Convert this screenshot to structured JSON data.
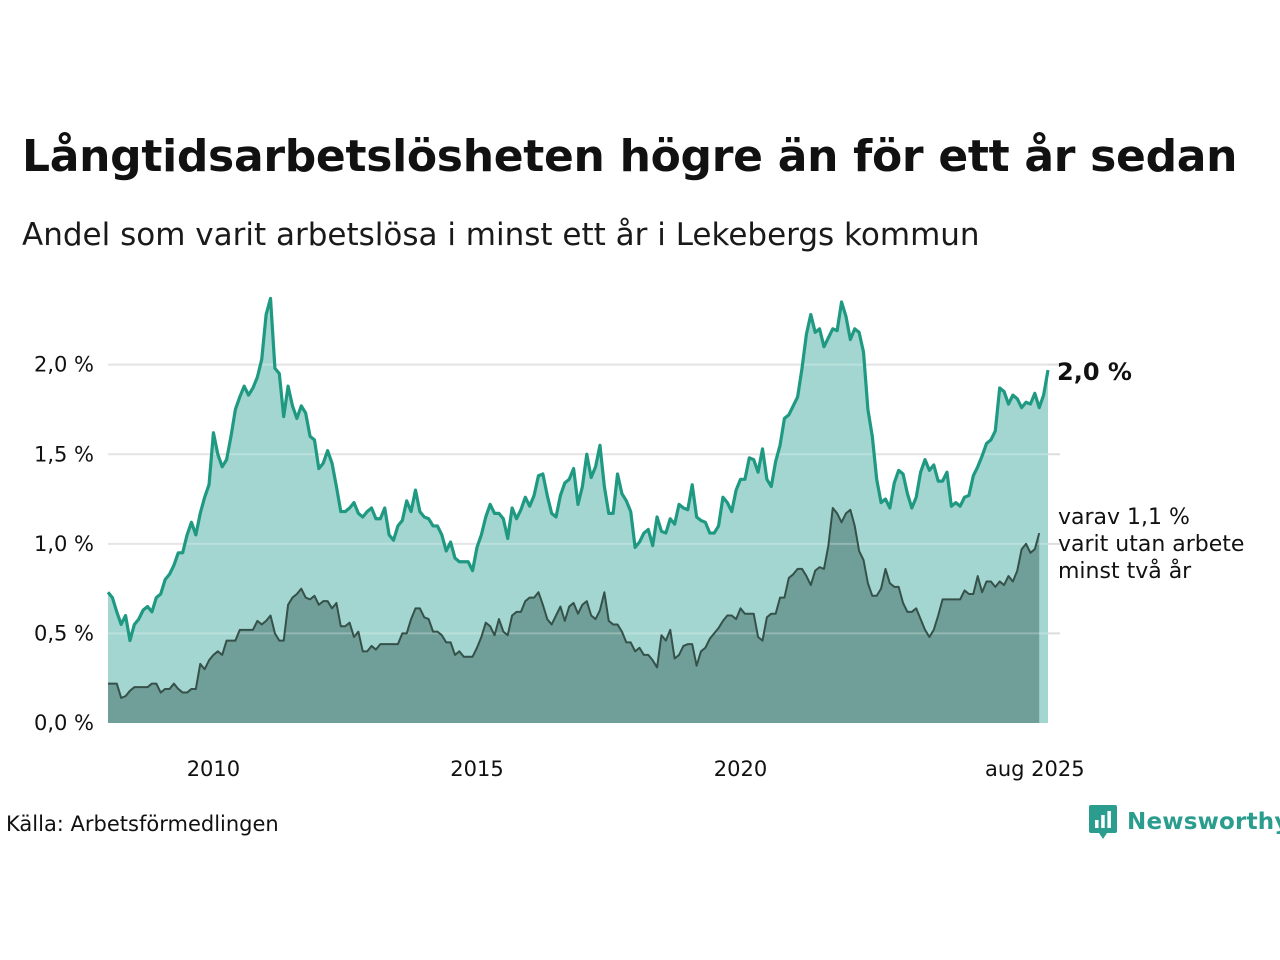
{
  "title": "Långtidsarbetslösheten högre än för ett år sedan",
  "subtitle": "Andel som varit arbetslösa i minst ett år i Lekebergs kommun",
  "source": "Källa: Arbetsförmedlingen",
  "brand": "Newsworthy",
  "colors": {
    "main_line": "#1f9982",
    "main_fill": "#a3d6d0",
    "sub_line": "#35514a",
    "sub_fill": "#6f9f98",
    "grid": "#dddddd",
    "brand": "#2a9d8f"
  },
  "chart_data": {
    "type": "area",
    "x_start": "2008-01",
    "x_end": "2025-08",
    "frequency": "monthly",
    "ylim": [
      0,
      2.4
    ],
    "y_ticks": [
      0,
      0.5,
      1.0,
      1.5,
      2.0
    ],
    "y_tick_labels": [
      "0,0 %",
      "0,5 %",
      "1,0 %",
      "1,5 %",
      "2,0 %"
    ],
    "x_tick_labels": [
      {
        "date": "2010-01",
        "label": "2010"
      },
      {
        "date": "2015-01",
        "label": "2015"
      },
      {
        "date": "2020-01",
        "label": "2020"
      },
      {
        "date": "2025-08",
        "label": "aug 2025"
      }
    ],
    "grid": true,
    "series": [
      {
        "id": "main",
        "end_label": "2,0 %",
        "values": [
          0.73,
          0.7,
          0.62,
          0.55,
          0.6,
          0.46,
          0.55,
          0.58,
          0.63,
          0.65,
          0.62,
          0.7,
          0.72,
          0.8,
          0.83,
          0.88,
          0.95,
          0.95,
          1.05,
          1.12,
          1.05,
          1.17,
          1.26,
          1.33,
          1.62,
          1.5,
          1.43,
          1.47,
          1.6,
          1.75,
          1.82,
          1.88,
          1.83,
          1.87,
          1.93,
          2.03,
          2.28,
          2.37,
          1.98,
          1.95,
          1.71,
          1.88,
          1.77,
          1.7,
          1.77,
          1.73,
          1.6,
          1.58,
          1.42,
          1.45,
          1.52,
          1.45,
          1.32,
          1.18,
          1.18,
          1.2,
          1.23,
          1.17,
          1.15,
          1.18,
          1.2,
          1.14,
          1.14,
          1.2,
          1.05,
          1.02,
          1.1,
          1.13,
          1.24,
          1.18,
          1.3,
          1.18,
          1.15,
          1.14,
          1.1,
          1.1,
          1.05,
          0.96,
          1.01,
          0.92,
          0.9,
          0.9,
          0.9,
          0.85,
          0.98,
          1.05,
          1.15,
          1.22,
          1.17,
          1.17,
          1.14,
          1.03,
          1.2,
          1.14,
          1.19,
          1.26,
          1.21,
          1.27,
          1.38,
          1.39,
          1.27,
          1.17,
          1.15,
          1.27,
          1.34,
          1.36,
          1.42,
          1.22,
          1.32,
          1.5,
          1.37,
          1.43,
          1.55,
          1.32,
          1.17,
          1.17,
          1.39,
          1.28,
          1.24,
          1.18,
          0.98,
          1.01,
          1.06,
          1.08,
          0.99,
          1.15,
          1.07,
          1.06,
          1.14,
          1.11,
          1.22,
          1.2,
          1.19,
          1.33,
          1.15,
          1.13,
          1.12,
          1.06,
          1.06,
          1.1,
          1.26,
          1.23,
          1.18,
          1.3,
          1.36,
          1.36,
          1.48,
          1.47,
          1.4,
          1.53,
          1.36,
          1.32,
          1.46,
          1.55,
          1.7,
          1.72,
          1.77,
          1.82,
          1.98,
          2.17,
          2.28,
          2.18,
          2.2,
          2.1,
          2.15,
          2.2,
          2.19,
          2.35,
          2.27,
          2.14,
          2.2,
          2.18,
          2.07,
          1.75,
          1.6,
          1.36,
          1.23,
          1.25,
          1.2,
          1.34,
          1.41,
          1.39,
          1.28,
          1.2,
          1.26,
          1.4,
          1.47,
          1.41,
          1.44,
          1.35,
          1.35,
          1.4,
          1.21,
          1.23,
          1.21,
          1.26,
          1.27,
          1.38,
          1.43,
          1.49,
          1.56,
          1.58,
          1.63,
          1.87,
          1.85,
          1.78,
          1.83,
          1.81,
          1.76,
          1.79,
          1.78,
          1.84,
          1.76,
          1.83,
          1.97
        ]
      },
      {
        "id": "sub",
        "end_label": "varav 1,1 %\nvarit utan arbete\nminst två år",
        "values": [
          0.22,
          0.22,
          0.22,
          0.14,
          0.15,
          0.18,
          0.2,
          0.2,
          0.2,
          0.2,
          0.22,
          0.22,
          0.17,
          0.19,
          0.19,
          0.22,
          0.19,
          0.17,
          0.17,
          0.19,
          0.19,
          0.33,
          0.3,
          0.35,
          0.38,
          0.4,
          0.38,
          0.46,
          0.46,
          0.46,
          0.52,
          0.52,
          0.52,
          0.52,
          0.57,
          0.55,
          0.57,
          0.6,
          0.5,
          0.46,
          0.46,
          0.66,
          0.7,
          0.72,
          0.75,
          0.7,
          0.69,
          0.71,
          0.66,
          0.68,
          0.68,
          0.64,
          0.67,
          0.54,
          0.54,
          0.56,
          0.48,
          0.51,
          0.4,
          0.4,
          0.43,
          0.41,
          0.44,
          0.44,
          0.44,
          0.44,
          0.44,
          0.5,
          0.5,
          0.58,
          0.64,
          0.64,
          0.59,
          0.58,
          0.51,
          0.51,
          0.49,
          0.45,
          0.45,
          0.38,
          0.4,
          0.37,
          0.37,
          0.37,
          0.42,
          0.48,
          0.56,
          0.54,
          0.49,
          0.58,
          0.51,
          0.49,
          0.6,
          0.62,
          0.62,
          0.68,
          0.7,
          0.7,
          0.73,
          0.66,
          0.58,
          0.55,
          0.6,
          0.65,
          0.57,
          0.65,
          0.67,
          0.61,
          0.66,
          0.68,
          0.6,
          0.58,
          0.63,
          0.73,
          0.57,
          0.55,
          0.55,
          0.51,
          0.45,
          0.45,
          0.4,
          0.42,
          0.38,
          0.38,
          0.35,
          0.31,
          0.49,
          0.46,
          0.52,
          0.36,
          0.38,
          0.43,
          0.44,
          0.44,
          0.32,
          0.4,
          0.42,
          0.47,
          0.5,
          0.53,
          0.57,
          0.6,
          0.6,
          0.58,
          0.64,
          0.61,
          0.61,
          0.61,
          0.48,
          0.46,
          0.59,
          0.61,
          0.61,
          0.7,
          0.7,
          0.81,
          0.83,
          0.86,
          0.86,
          0.82,
          0.77,
          0.85,
          0.87,
          0.86,
          0.99,
          1.2,
          1.17,
          1.12,
          1.17,
          1.19,
          1.1,
          0.96,
          0.91,
          0.78,
          0.71,
          0.71,
          0.75,
          0.86,
          0.78,
          0.76,
          0.76,
          0.67,
          0.62,
          0.62,
          0.64,
          0.58,
          0.52,
          0.48,
          0.52,
          0.6,
          0.69,
          0.69,
          0.69,
          0.69,
          0.69,
          0.74,
          0.72,
          0.72,
          0.82,
          0.73,
          0.79,
          0.79,
          0.76,
          0.79,
          0.77,
          0.82,
          0.79,
          0.85,
          0.97,
          1.0,
          0.95,
          0.97,
          1.06
        ]
      }
    ]
  }
}
